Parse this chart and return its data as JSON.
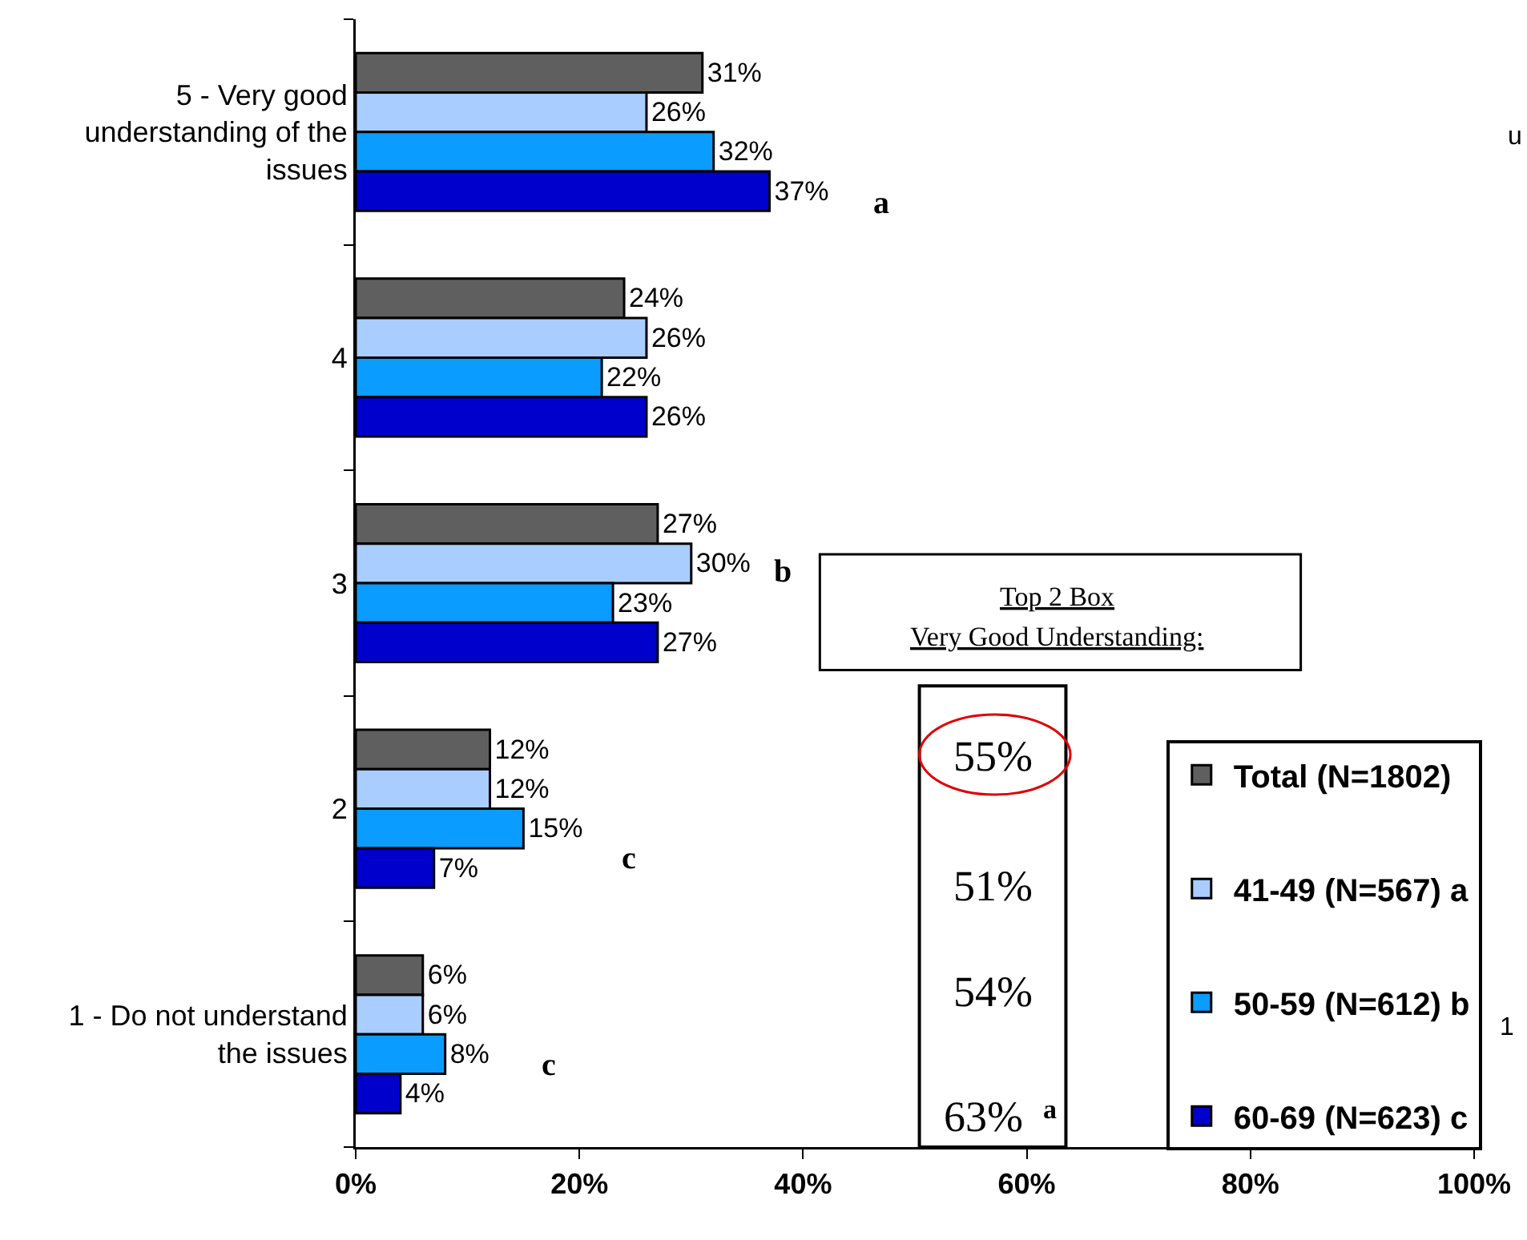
{
  "chart_data": {
    "type": "bar",
    "orientation": "horizontal",
    "categories": [
      "5 - Very good understanding of the issues",
      "4",
      "3",
      "2",
      "1 - Do not understand the issues"
    ],
    "series": [
      {
        "name": "Total (N=1802)",
        "color": "#5f5f5f",
        "values": [
          31,
          24,
          27,
          12,
          6
        ],
        "value_labels": [
          "31%",
          "24%",
          "27%",
          "12%",
          "6%"
        ]
      },
      {
        "name": "41-49 (N=567) a",
        "color": "#a9cdff",
        "values": [
          26,
          26,
          30,
          12,
          6
        ],
        "value_labels": [
          "26%",
          "26%",
          "30%",
          "12%",
          "6%"
        ]
      },
      {
        "name": "50-59 (N=612) b",
        "color": "#0a9cff",
        "values": [
          32,
          22,
          23,
          15,
          8
        ],
        "value_labels": [
          "32%",
          "22%",
          "23%",
          "15%",
          "8%"
        ]
      },
      {
        "name": "60-69 (N=623) c",
        "color": "#0000cc",
        "values": [
          37,
          26,
          27,
          7,
          4
        ],
        "value_labels": [
          "37%",
          "26%",
          "27%",
          "7%",
          "4%"
        ]
      }
    ],
    "xlim": [
      0,
      100
    ],
    "xticks": [
      {
        "value": 0,
        "label": "0%"
      },
      {
        "value": 20,
        "label": "20%"
      },
      {
        "value": 40,
        "label": "40%"
      },
      {
        "value": 60,
        "label": "60%"
      },
      {
        "value": 80,
        "label": "80%"
      },
      {
        "value": 100,
        "label": "100%"
      }
    ],
    "legend": "bottom right",
    "annotations": [
      "a",
      "b",
      "c",
      "c",
      "Top 2 Box",
      "Very Good Understanding:",
      "55%",
      "51%",
      "54%",
      "63%",
      "a",
      "u",
      "1"
    ]
  }
}
